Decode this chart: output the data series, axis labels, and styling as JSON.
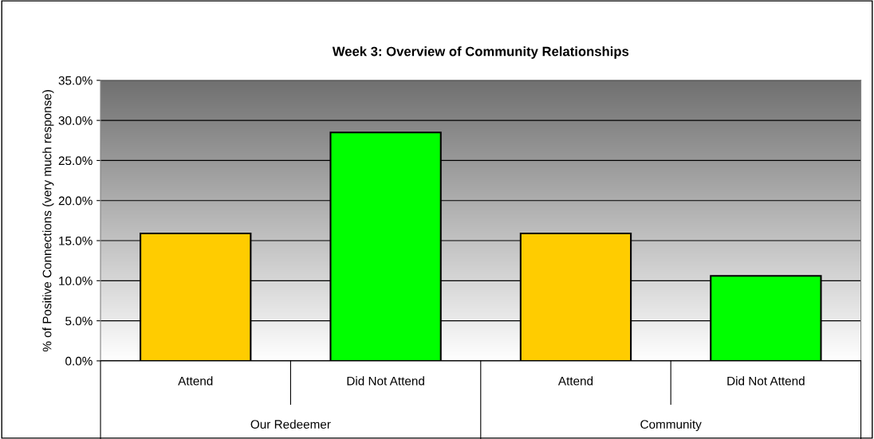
{
  "chart_data": {
    "type": "bar",
    "title": "Week 3: Overview of Community Relationships",
    "ylabel": "% of Positive Connections (very much response)",
    "categories": [
      "Attend",
      "Did Not Attend",
      "Attend",
      "Did Not Attend"
    ],
    "values": [
      15.9,
      28.5,
      15.9,
      10.6
    ],
    "colors": [
      "#ffcc00",
      "#00ff00",
      "#ffcc00",
      "#00ff00"
    ],
    "annotations": [
      "Our Redeemer",
      "Community"
    ],
    "ylim": [
      0,
      35
    ],
    "yticks": [
      {
        "value": 0,
        "label": "0.0%"
      },
      {
        "value": 5,
        "label": "5.0%"
      },
      {
        "value": 10,
        "label": "10.0%"
      },
      {
        "value": 15,
        "label": "15.0%"
      },
      {
        "value": 20,
        "label": "20.0%"
      },
      {
        "value": 25,
        "label": "25.0%"
      },
      {
        "value": 30,
        "label": "30.0%"
      },
      {
        "value": 35,
        "label": "35.0%"
      }
    ],
    "grid": "y",
    "legend": false
  }
}
